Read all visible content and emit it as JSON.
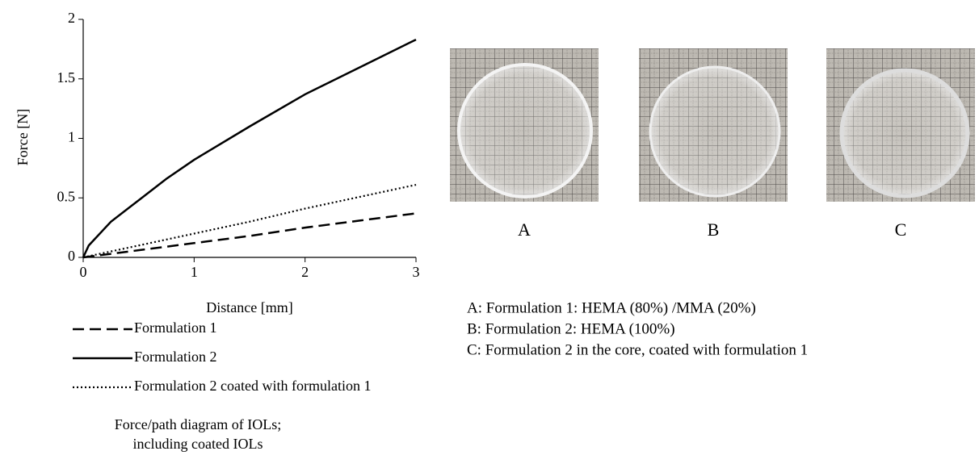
{
  "chart_data": {
    "type": "line",
    "x_label": "Distance [mm]",
    "y_label": "Force [N]",
    "x": [
      0,
      0.05,
      0.1,
      0.25,
      0.5,
      0.75,
      1,
      1.5,
      2,
      2.5,
      3
    ],
    "series": [
      {
        "name": "Formulation 1",
        "color": "#000000",
        "style": "dashed",
        "values": [
          0,
          0.006,
          0.012,
          0.03,
          0.06,
          0.09,
          0.12,
          0.18,
          0.25,
          0.31,
          0.37
        ]
      },
      {
        "name": "Formulation 2",
        "color": "#000000",
        "style": "solid",
        "values": [
          0,
          0.1,
          0.15,
          0.3,
          0.48,
          0.66,
          0.82,
          1.1,
          1.37,
          1.6,
          1.83
        ]
      },
      {
        "name": "Formulation 2 coated with formulation 1",
        "color": "#000000",
        "style": "dotted",
        "values": [
          0,
          0.01,
          0.02,
          0.05,
          0.1,
          0.15,
          0.2,
          0.3,
          0.41,
          0.51,
          0.61
        ]
      }
    ],
    "xlim": [
      0,
      3
    ],
    "xticks": [
      0,
      1,
      2,
      3
    ],
    "ylim": [
      0,
      2
    ],
    "yticks": [
      0,
      0.5,
      1,
      1.5,
      2
    ],
    "caption": [
      "Force/path diagram of IOLs;",
      "including coated IOLs"
    ]
  },
  "photos": [
    {
      "label": "A"
    },
    {
      "label": "B"
    },
    {
      "label": "C"
    }
  ],
  "descriptions": [
    "A: Formulation 1: HEMA (80%) /MMA (20%)",
    "B: Formulation 2: HEMA (100%)",
    "C: Formulation 2 in the core, coated with formulation 1"
  ]
}
